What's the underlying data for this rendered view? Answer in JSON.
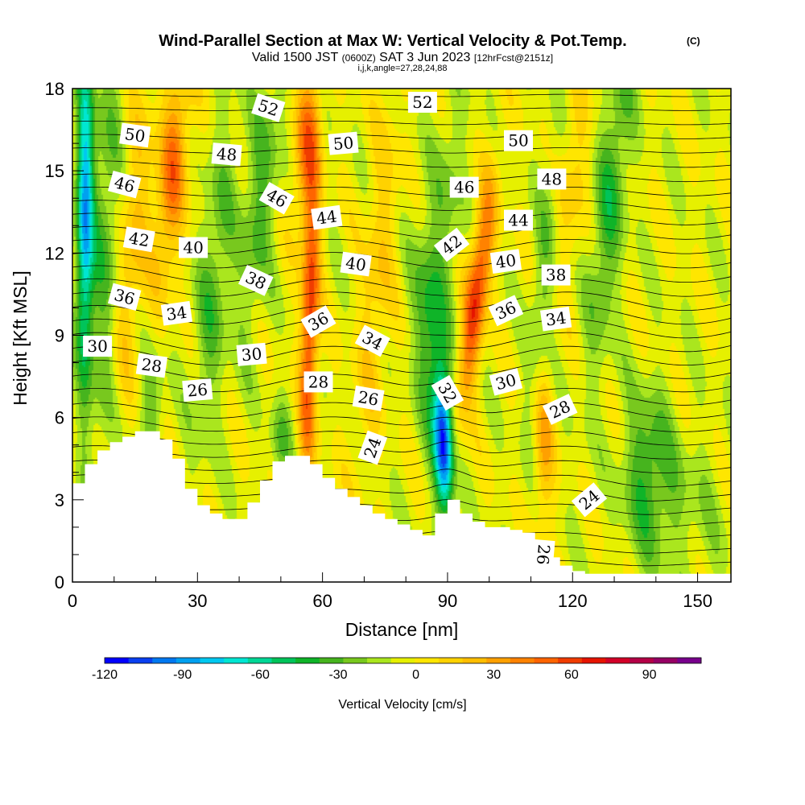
{
  "chart_data": {
    "type": "heatmap",
    "title": "Wind-Parallel Section at Max W: Vertical Velocity & Pot.Temp.",
    "copyright": "(C)",
    "subtitle": {
      "valid": "Valid 1500 JST",
      "utc": "(0600Z)",
      "date": "SAT 3 Jun 2023",
      "forecast": "[12hrFcst@2151z]"
    },
    "index_line": "i,j,k,angle=27,28,24,88",
    "xlabel": "Distance [nm]",
    "ylabel": "Height [Kft MSL]",
    "xlim": [
      0,
      158
    ],
    "ylim": [
      0,
      18
    ],
    "x_ticks": [
      "0",
      "30",
      "60",
      "90",
      "120",
      "150"
    ],
    "y_ticks": [
      "0",
      "3",
      "6",
      "9",
      "12",
      "15",
      "18"
    ],
    "grid": false,
    "colorbar": {
      "label": "Vertical Velocity [cm/s]",
      "range": [
        -120,
        110
      ],
      "step": 10,
      "tick_labels": [
        "-120",
        "-90",
        "-60",
        "-30",
        "0",
        "30",
        "60",
        "90"
      ],
      "colors": [
        "#0000ff",
        "#0a40f0",
        "#0078f0",
        "#00a0f0",
        "#00c8f0",
        "#00e6d2",
        "#00d796",
        "#00c45a",
        "#0fb428",
        "#46b41e",
        "#78c81e",
        "#aae61e",
        "#e6f000",
        "#ffe600",
        "#ffd200",
        "#ffbe00",
        "#ffa000",
        "#ff8200",
        "#ff6400",
        "#f03c00",
        "#e61400",
        "#d20028",
        "#b40046",
        "#960064",
        "#78008c"
      ]
    },
    "terrain": {
      "distance_nm": [
        0,
        3,
        6,
        9,
        12,
        15,
        18,
        21,
        24,
        27,
        30,
        33,
        36,
        39,
        42,
        45,
        48,
        51,
        54,
        57,
        60,
        63,
        66,
        69,
        72,
        75,
        78,
        81,
        84,
        87,
        90,
        93,
        96,
        99,
        102,
        105,
        108,
        111,
        114,
        117,
        120,
        123,
        126,
        129,
        132,
        135,
        138,
        141,
        144,
        147,
        150,
        153,
        156
      ],
      "height_kft": [
        3.6,
        4.3,
        4.8,
        5.1,
        5.3,
        5.5,
        5.5,
        5.2,
        4.5,
        3.4,
        2.8,
        2.5,
        2.3,
        2.3,
        2.9,
        3.7,
        4.4,
        4.6,
        4.6,
        4.3,
        3.8,
        3.4,
        3.1,
        2.8,
        2.5,
        2.3,
        2.1,
        1.9,
        1.7,
        2.5,
        3.0,
        2.5,
        2.2,
        2.0,
        2.0,
        1.9,
        1.8,
        1.5,
        0.9,
        0.6,
        0.4,
        0.3,
        0.3,
        0.3,
        0.3,
        0.3,
        0.3,
        0.3,
        0.3,
        0.3,
        0.3,
        0.3,
        0.3
      ]
    },
    "vertical_velocity_features": [
      {
        "x": 3,
        "y": 13.5,
        "w": -85,
        "sx": 2,
        "sy": 6,
        "tilt": 0.02
      },
      {
        "x": 8,
        "y": 12,
        "w": -30,
        "sx": 4,
        "sy": 8,
        "tilt": 0.1
      },
      {
        "x": 14,
        "y": 12,
        "w": 28,
        "sx": 4,
        "sy": 6,
        "tilt": 0.5
      },
      {
        "x": 24,
        "y": 15,
        "w": 52,
        "sx": 3.5,
        "sy": 4,
        "tilt": 0.5
      },
      {
        "x": 19,
        "y": 6.5,
        "w": -25,
        "sx": 3,
        "sy": 2,
        "tilt": 0
      },
      {
        "x": 34,
        "y": 11,
        "w": -28,
        "sx": 4,
        "sy": 6,
        "tilt": 0.5
      },
      {
        "x": 45,
        "y": 14,
        "w": -30,
        "sx": 4,
        "sy": 5,
        "tilt": 0.6
      },
      {
        "x": 50,
        "y": 5.2,
        "w": -25,
        "sx": 2.5,
        "sy": 1.5,
        "tilt": 0
      },
      {
        "x": 57,
        "y": 9.5,
        "w": 70,
        "sx": 2.2,
        "sy": 6,
        "tilt": 0.15
      },
      {
        "x": 56,
        "y": 16,
        "w": 45,
        "sx": 3,
        "sy": 3,
        "tilt": 0.3
      },
      {
        "x": 73,
        "y": 11,
        "w": 22,
        "sx": 4,
        "sy": 7,
        "tilt": 0.5
      },
      {
        "x": 89,
        "y": 5,
        "w": -110,
        "sx": 2.2,
        "sy": 2.5,
        "tilt": -0.2
      },
      {
        "x": 86,
        "y": 9,
        "w": -40,
        "sx": 4,
        "sy": 4,
        "tilt": -0.3
      },
      {
        "x": 97,
        "y": 10.5,
        "w": 72,
        "sx": 2.8,
        "sy": 4,
        "tilt": 0.8
      },
      {
        "x": 90,
        "y": 14,
        "w": -20,
        "sx": 4,
        "sy": 4,
        "tilt": 0.3
      },
      {
        "x": 113,
        "y": 11,
        "w": -22,
        "sx": 3,
        "sy": 6,
        "tilt": 0.5
      },
      {
        "x": 113,
        "y": 5,
        "w": 35,
        "sx": 2.5,
        "sy": 3,
        "tilt": 0
      },
      {
        "x": 120,
        "y": 15,
        "w": 20,
        "sx": 4,
        "sy": 4,
        "tilt": 0.4
      },
      {
        "x": 129,
        "y": 14,
        "w": -35,
        "sx": 4,
        "sy": 6,
        "tilt": 0.6
      },
      {
        "x": 138,
        "y": 4,
        "w": -35,
        "sx": 6,
        "sy": 3,
        "tilt": 0
      },
      {
        "x": 148,
        "y": 2.5,
        "w": -12,
        "sx": 10,
        "sy": 3,
        "tilt": 0
      }
    ],
    "theta_label_values": [
      "52",
      "50",
      "48",
      "46",
      "44",
      "42",
      "40",
      "38",
      "36",
      "34",
      "32",
      "30",
      "28",
      "26",
      "24"
    ],
    "contour_labels": [
      {
        "text": "52",
        "x": 47,
        "y": 17.3,
        "angle": 18
      },
      {
        "text": "52",
        "x": 84,
        "y": 17.5,
        "angle": 0
      },
      {
        "text": "50",
        "x": 15,
        "y": 16.3,
        "angle": 8
      },
      {
        "text": "50",
        "x": 65,
        "y": 16.0,
        "angle": -5
      },
      {
        "text": "50",
        "x": 107,
        "y": 16.1,
        "angle": 0
      },
      {
        "text": "48",
        "x": 37,
        "y": 15.6,
        "angle": 5
      },
      {
        "text": "48",
        "x": 115,
        "y": 14.7,
        "angle": 0
      },
      {
        "text": "46",
        "x": 12.5,
        "y": 14.5,
        "angle": 15
      },
      {
        "text": "46",
        "x": 49,
        "y": 14.0,
        "angle": 30
      },
      {
        "text": "46",
        "x": 94,
        "y": 14.4,
        "angle": 0
      },
      {
        "text": "44",
        "x": 61,
        "y": 13.3,
        "angle": -8
      },
      {
        "text": "44",
        "x": 107,
        "y": 13.2,
        "angle": 0
      },
      {
        "text": "42",
        "x": 16,
        "y": 12.5,
        "angle": 10
      },
      {
        "text": "42",
        "x": 91,
        "y": 12.3,
        "angle": -38
      },
      {
        "text": "40",
        "x": 29,
        "y": 12.2,
        "angle": 0
      },
      {
        "text": "40",
        "x": 68,
        "y": 11.6,
        "angle": 8
      },
      {
        "text": "40",
        "x": 104,
        "y": 11.7,
        "angle": -8
      },
      {
        "text": "38",
        "x": 44,
        "y": 11.0,
        "angle": 25
      },
      {
        "text": "38",
        "x": 116,
        "y": 11.2,
        "angle": 0
      },
      {
        "text": "36",
        "x": 12.5,
        "y": 10.4,
        "angle": 15
      },
      {
        "text": "36",
        "x": 59,
        "y": 9.5,
        "angle": -30
      },
      {
        "text": "36",
        "x": 104,
        "y": 9.9,
        "angle": -25
      },
      {
        "text": "34",
        "x": 25,
        "y": 9.8,
        "angle": -8
      },
      {
        "text": "34",
        "x": 72,
        "y": 8.8,
        "angle": 28
      },
      {
        "text": "34",
        "x": 116,
        "y": 9.6,
        "angle": -8
      },
      {
        "text": "32",
        "x": 90,
        "y": 6.9,
        "angle": 60
      },
      {
        "text": "30",
        "x": 6,
        "y": 8.6,
        "angle": 0
      },
      {
        "text": "30",
        "x": 43,
        "y": 8.3,
        "angle": -5
      },
      {
        "text": "30",
        "x": 104,
        "y": 7.3,
        "angle": -15
      },
      {
        "text": "28",
        "x": 19,
        "y": 7.9,
        "angle": 8
      },
      {
        "text": "28",
        "x": 59,
        "y": 7.3,
        "angle": 0
      },
      {
        "text": "28",
        "x": 117,
        "y": 6.3,
        "angle": -25
      },
      {
        "text": "26",
        "x": 30,
        "y": 7.0,
        "angle": -5
      },
      {
        "text": "26",
        "x": 71,
        "y": 6.7,
        "angle": 10
      },
      {
        "text": "26",
        "x": 113,
        "y": 1.0,
        "angle": 95
      },
      {
        "text": "24",
        "x": 72,
        "y": 4.9,
        "angle": -70
      },
      {
        "text": "24",
        "x": 124,
        "y": 3.0,
        "angle": -40
      }
    ]
  }
}
